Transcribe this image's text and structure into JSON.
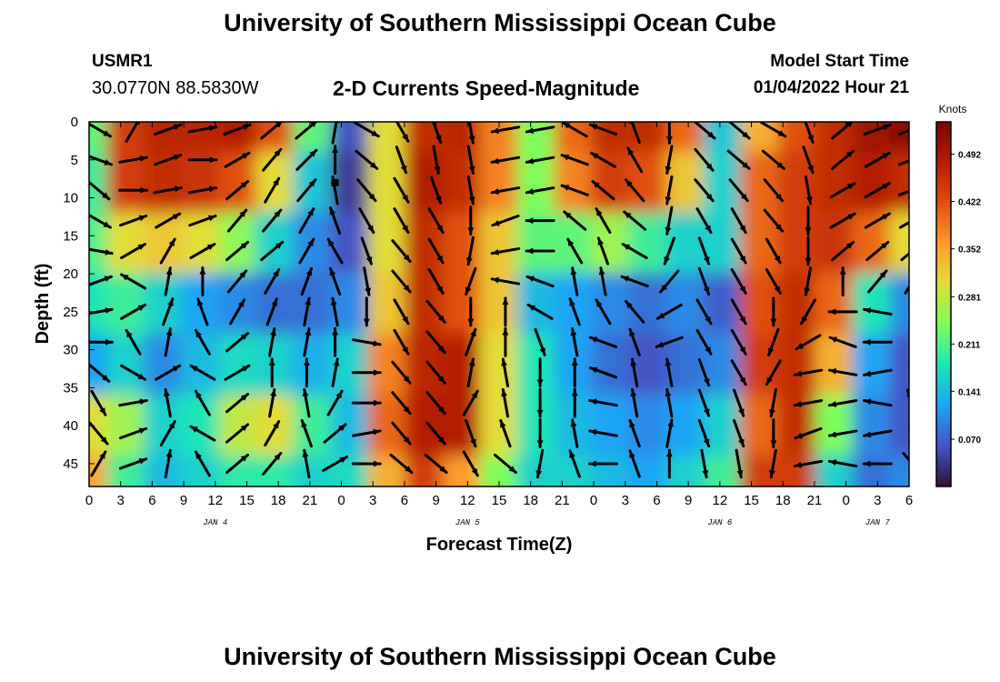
{
  "header": {
    "title": "University of Southern Mississippi Ocean Cube",
    "station": "USMR1",
    "coordinates": "30.0770N  88.5830W",
    "subtitle": "2-D Currents Speed-Magnitude",
    "model_start_label": "Model Start Time",
    "model_start_value": "01/04/2022 Hour 21",
    "footer_title": "University of Southern Mississippi Ocean Cube"
  },
  "chart_data": {
    "type": "heatmap",
    "xlabel": "Forecast Time(Z)",
    "ylabel": "Depth (ft)",
    "x_tick_labels": [
      "0",
      "3",
      "6",
      "9",
      "12",
      "15",
      "18",
      "21",
      "0",
      "3",
      "6",
      "9",
      "12",
      "15",
      "18",
      "21",
      "0",
      "3",
      "6",
      "9",
      "12",
      "15",
      "18",
      "21",
      "0",
      "3",
      "6"
    ],
    "y_tick_labels": [
      "0",
      "5",
      "10",
      "15",
      "20",
      "25",
      "30",
      "35",
      "40",
      "45"
    ],
    "y_ticks": [
      0,
      5,
      10,
      15,
      20,
      25,
      30,
      35,
      40,
      45
    ],
    "ylim": [
      0,
      48
    ],
    "date_labels": [
      {
        "text": "JAN 4",
        "at_tick": 4
      },
      {
        "text": "JAN 5",
        "at_tick": 12
      },
      {
        "text": "JAN 6",
        "at_tick": 20
      },
      {
        "text": "JAN 7",
        "at_tick": 25
      }
    ],
    "colorbar": {
      "title": "Knots",
      "tick_labels": [
        "0.492",
        "0.422",
        "0.352",
        "0.281",
        "0.211",
        "0.141",
        "0.070"
      ],
      "ticks": [
        0.492,
        0.422,
        0.352,
        0.281,
        0.211,
        0.141,
        0.07
      ],
      "range": [
        0.0,
        0.54
      ],
      "colors": [
        "#30123b",
        "#4454c4",
        "#1ba5f6",
        "#1ee5b7",
        "#7cfd5a",
        "#e2dc38",
        "#fe9b2d",
        "#e04f0e",
        "#b21d02",
        "#7a0403"
      ]
    },
    "speed_grid_note": "",
    "speed_grid_depths": [
      0,
      8,
      16,
      24,
      32,
      40,
      48
    ],
    "speed_grid_columns": [
      [
        0.22,
        0.2,
        0.21,
        0.18,
        0.12,
        0.3,
        0.35
      ],
      [
        0.44,
        0.44,
        0.3,
        0.2,
        0.16,
        0.26,
        0.2
      ],
      [
        0.47,
        0.46,
        0.32,
        0.16,
        0.1,
        0.16,
        0.14
      ],
      [
        0.47,
        0.45,
        0.3,
        0.12,
        0.14,
        0.18,
        0.16
      ],
      [
        0.48,
        0.42,
        0.25,
        0.1,
        0.17,
        0.28,
        0.19
      ],
      [
        0.42,
        0.3,
        0.16,
        0.08,
        0.16,
        0.3,
        0.19
      ],
      [
        0.22,
        0.15,
        0.1,
        0.08,
        0.13,
        0.2,
        0.16
      ],
      [
        0.06,
        0.04,
        0.06,
        0.1,
        0.16,
        0.14,
        0.17
      ],
      [
        0.3,
        0.3,
        0.3,
        0.32,
        0.38,
        0.4,
        0.34
      ],
      [
        0.46,
        0.48,
        0.46,
        0.46,
        0.47,
        0.48,
        0.44
      ],
      [
        0.47,
        0.46,
        0.42,
        0.42,
        0.48,
        0.48,
        0.36
      ],
      [
        0.38,
        0.38,
        0.32,
        0.32,
        0.3,
        0.3,
        0.24
      ],
      [
        0.24,
        0.24,
        0.22,
        0.14,
        0.18,
        0.18,
        0.16
      ],
      [
        0.4,
        0.38,
        0.22,
        0.12,
        0.12,
        0.14,
        0.16
      ],
      [
        0.46,
        0.44,
        0.26,
        0.1,
        0.08,
        0.12,
        0.14
      ],
      [
        0.46,
        0.42,
        0.2,
        0.08,
        0.06,
        0.1,
        0.12
      ],
      [
        0.4,
        0.32,
        0.16,
        0.1,
        0.08,
        0.12,
        0.16
      ],
      [
        0.15,
        0.16,
        0.16,
        0.07,
        0.1,
        0.16,
        0.2
      ],
      [
        0.34,
        0.4,
        0.4,
        0.42,
        0.44,
        0.4,
        0.44
      ],
      [
        0.42,
        0.44,
        0.44,
        0.46,
        0.46,
        0.46,
        0.44
      ],
      [
        0.46,
        0.46,
        0.45,
        0.4,
        0.34,
        0.24,
        0.16
      ],
      [
        0.5,
        0.48,
        0.4,
        0.18,
        0.12,
        0.1,
        0.08
      ],
      [
        0.52,
        0.46,
        0.3,
        0.1,
        0.06,
        0.06,
        0.1
      ]
    ],
    "arrows_note": "",
    "arrow_x_ticks": [
      0.3,
      1.4,
      2.5,
      3.6,
      4.7,
      5.8,
      6.9,
      7.8,
      8.8,
      9.9,
      11.0,
      12.1,
      13.2,
      14.3,
      15.4,
      16.3,
      17.3,
      18.4,
      19.5,
      20.6,
      21.7,
      22.8,
      23.9,
      25.0,
      26.1
    ],
    "arrow_depths": [
      1,
      5,
      9,
      13,
      17,
      21,
      25,
      29,
      33,
      37,
      41,
      45
    ],
    "arrow_angles": [
      [
        30,
        20,
        40,
        30,
        10,
        -20,
        -10,
        0,
        40,
        60,
        50,
        -60
      ],
      [
        -60,
        -10,
        0,
        -20,
        -30,
        -150,
        -30,
        -120,
        30,
        -10,
        -20,
        -20
      ],
      [
        -20,
        -20,
        -10,
        -30,
        -60,
        -80,
        -70,
        -80,
        -30,
        -100,
        -60,
        -80
      ],
      [
        -10,
        0,
        -10,
        -20,
        -30,
        -90,
        -110,
        -120,
        -150,
        -120,
        -150,
        -120
      ],
      [
        -20,
        -30,
        -40,
        -50,
        -40,
        -50,
        -60,
        -40,
        -30,
        -40,
        -40,
        -40
      ],
      [
        -40,
        -50,
        -60,
        -50,
        -40,
        -60,
        -70,
        -80,
        -90,
        -80,
        -60,
        -50
      ],
      [
        -40,
        -45,
        -50,
        -60,
        -60,
        -70,
        -80,
        -80,
        -90,
        -100,
        -110,
        -100
      ],
      [
        -80,
        -90,
        -100,
        -110,
        -120,
        -110,
        -100,
        -90,
        -80,
        -60,
        -40,
        -30
      ],
      [
        30,
        40,
        50,
        60,
        70,
        80,
        90,
        10,
        0,
        0,
        -10,
        0
      ],
      [
        60,
        70,
        60,
        60,
        50,
        50,
        60,
        60,
        50,
        50,
        50,
        40
      ],
      [
        70,
        80,
        70,
        60,
        60,
        60,
        50,
        50,
        50,
        50,
        50,
        40
      ],
      [
        80,
        80,
        80,
        90,
        100,
        110,
        90,
        -70,
        -80,
        -60,
        70,
        60
      ],
      [
        170,
        170,
        170,
        160,
        170,
        -170,
        -90,
        -90,
        -100,
        -100,
        -110,
        40
      ],
      [
        170,
        170,
        170,
        180,
        180,
        -160,
        -150,
        70,
        90,
        90,
        90,
        100
      ],
      [
        -150,
        -160,
        -160,
        -140,
        -120,
        -100,
        -110,
        -100,
        -90,
        -90,
        -100,
        -110
      ],
      [
        -160,
        -150,
        -140,
        -120,
        -110,
        -100,
        -120,
        -160,
        -160,
        -170,
        -170,
        180
      ],
      [
        -110,
        -120,
        -130,
        -140,
        -150,
        -160,
        -130,
        -110,
        -100,
        -100,
        -110,
        -110
      ],
      [
        90,
        100,
        100,
        100,
        110,
        130,
        150,
        160,
        -100,
        -100,
        -80,
        -90
      ],
      [
        40,
        50,
        50,
        60,
        70,
        70,
        60,
        60,
        70,
        70,
        70,
        80
      ],
      [
        40,
        40,
        50,
        60,
        60,
        60,
        60,
        60,
        60,
        70,
        70,
        80
      ],
      [
        30,
        40,
        50,
        50,
        60,
        60,
        90,
        110,
        120,
        100,
        90,
        100
      ],
      [
        70,
        70,
        80,
        90,
        90,
        100,
        120,
        150,
        170,
        170,
        160,
        170
      ],
      [
        -40,
        -40,
        -30,
        -30,
        -40,
        -90,
        -180,
        -160,
        -170,
        170,
        170,
        -170
      ],
      [
        -20,
        -30,
        -30,
        -30,
        -40,
        -50,
        -170,
        180,
        170,
        -170,
        170,
        180
      ],
      [
        -20,
        -20,
        -20,
        -30,
        -40,
        -60,
        -80,
        -90,
        -100,
        -110,
        -100,
        50
      ]
    ],
    "marker": {
      "x_tick": 7.8,
      "depth": 8
    }
  }
}
